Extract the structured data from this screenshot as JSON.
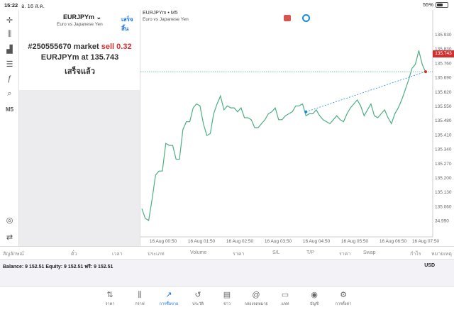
{
  "status": {
    "time": "15:22",
    "date": "อ. 16 ส.ค.",
    "battery": "55%",
    "battery_level": 0.55
  },
  "toolbar": {
    "tools": [
      {
        "icon": "crosshair-icon",
        "glyph": "✛"
      },
      {
        "icon": "candlestick-icon",
        "glyph": "⫼"
      },
      {
        "icon": "chart-type-icon",
        "glyph": "▟"
      },
      {
        "icon": "settings-sliders-icon",
        "glyph": "☰"
      },
      {
        "icon": "function-icon",
        "glyph": "ƒ"
      },
      {
        "icon": "objects-icon",
        "glyph": "⌕"
      },
      {
        "label": "M5"
      },
      {
        "icon": "zoom-chart-icon",
        "glyph": "◎"
      },
      {
        "icon": "trade-icon",
        "glyph": "⇄"
      }
    ]
  },
  "trade_panel": {
    "symbol": "EURJPYm",
    "description": "Euro vs Japanese Yen",
    "done_label": "เสร็จสิ้น",
    "order_prefix": "#250555670 market",
    "order_side": "sell 0.32",
    "order_at": "EURJPYm at 135.743",
    "status": "เสร็จแล้ว"
  },
  "chart": {
    "title": "EURJPYm • M5",
    "subtitle": "Euro vs Japanese Yen",
    "current_price": "135.743",
    "colors": {
      "line": "#4caf82",
      "order": "#1e88e5",
      "marker": "#d32f2f"
    }
  },
  "chart_data": {
    "type": "line",
    "title": "EURJPYm • M5",
    "xlabel": "",
    "ylabel": "",
    "ylim": [
      34.97,
      135.93
    ],
    "y_ticks": [
      "135.930",
      "135.830",
      "135.760",
      "135.690",
      "135.620",
      "135.550",
      "135.480",
      "135.410",
      "135.340",
      "135.270",
      "135.200",
      "135.130",
      "135.060",
      "34.990"
    ],
    "x_ticks": [
      "16 Aug 00:50",
      "16 Aug 01:50",
      "16 Aug 02:50",
      "16 Aug 03:50",
      "16 Aug 04:50",
      "16 Aug 05:50",
      "16 Aug 06:50",
      "16 Aug 07:50"
    ],
    "series": [
      {
        "values": [
          135.05,
          135.0,
          134.99,
          135.1,
          135.22,
          135.24,
          135.24,
          135.38,
          135.37,
          135.37,
          135.3,
          135.3,
          135.45,
          135.49,
          135.49,
          135.56,
          135.58,
          135.57,
          135.48,
          135.42,
          135.43,
          135.53,
          135.58,
          135.62,
          135.55,
          135.57,
          135.56,
          135.56,
          135.54,
          135.56,
          135.51,
          135.51,
          135.5,
          135.46,
          135.46,
          135.48,
          135.5,
          135.53,
          135.54,
          135.56,
          135.5,
          135.5,
          135.52,
          135.53,
          135.54,
          135.57,
          135.57,
          135.58,
          135.52,
          135.53,
          135.53,
          135.55,
          135.52,
          135.5,
          135.49,
          135.48,
          135.5,
          135.52,
          135.5,
          135.49,
          135.53,
          135.56,
          135.58,
          135.6,
          135.57,
          135.52,
          135.55,
          135.58,
          135.52,
          135.51,
          135.53,
          135.55,
          135.51,
          135.48,
          135.53,
          135.56,
          135.6,
          135.65,
          135.7,
          135.76,
          135.78,
          135.85,
          135.78,
          135.74
        ]
      }
    ],
    "order_line": {
      "from_time_index": 48,
      "from_price": 135.54,
      "to_price": 135.743,
      "current": 135.743
    }
  },
  "table_header": [
    "สัญลักษณ์",
    "ตั๋ว",
    "เวลา",
    "ประเภท",
    "Volume",
    "ราคา",
    "S/L",
    "T/P",
    "ราคา",
    "Swap",
    "กำไร",
    "หมายเหตุ"
  ],
  "balance": {
    "text": "Balance: 9 152.51 Equity: 9 152.51 ฟรี: 9 152.51",
    "currency": "USD"
  },
  "nav": [
    {
      "label": "ราคา",
      "icon": "quotes-icon",
      "glyph": "⇅"
    },
    {
      "label": "กราฟ",
      "icon": "chart-icon",
      "glyph": "⫼"
    },
    {
      "label": "การซื้อขาย",
      "icon": "trade-icon",
      "glyph": "📈"
    },
    {
      "label": "ประวัติ",
      "icon": "history-icon",
      "glyph": "↺"
    },
    {
      "label": "ข่าว",
      "icon": "news-icon",
      "glyph": "▤"
    },
    {
      "label": "กล่องจดหมาย",
      "icon": "mailbox-icon",
      "glyph": "@"
    },
    {
      "label": "แชท",
      "icon": "chat-icon",
      "glyph": "▭"
    },
    {
      "label": "บัญชี",
      "icon": "account-icon",
      "glyph": "◉"
    },
    {
      "label": "การตั้งค่า",
      "icon": "settings-icon",
      "glyph": "⚙"
    }
  ]
}
